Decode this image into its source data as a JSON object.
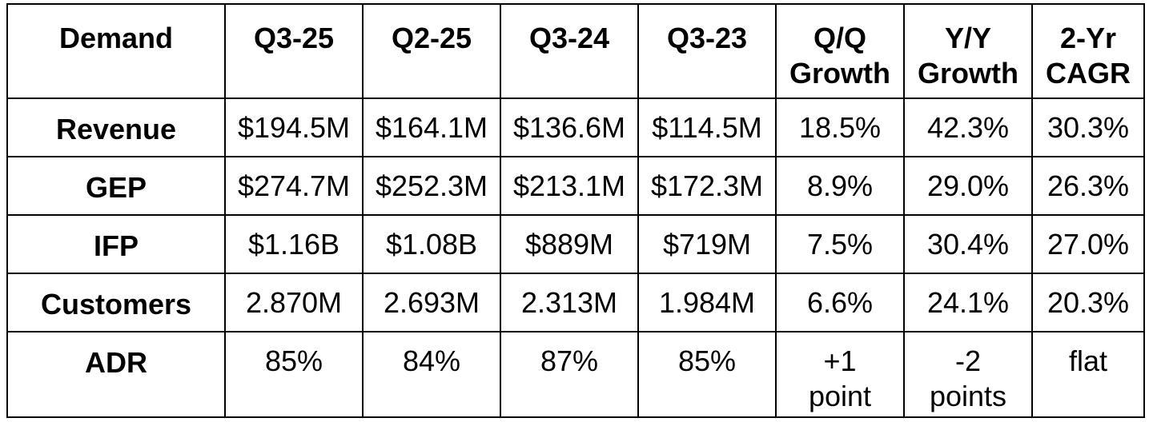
{
  "table": {
    "headers": [
      "Demand",
      "Q3-25",
      "Q2-25",
      "Q3-24",
      "Q3-23",
      "Q/Q Growth",
      "Y/Y Growth",
      "2-Yr CAGR"
    ],
    "header_lines": [
      [
        "Demand"
      ],
      [
        "Q3-25"
      ],
      [
        "Q2-25"
      ],
      [
        "Q3-24"
      ],
      [
        "Q3-23"
      ],
      [
        "Q/Q",
        "Growth"
      ],
      [
        "Y/Y",
        "Growth"
      ],
      [
        "2-Yr",
        "CAGR"
      ]
    ],
    "rows": [
      {
        "label": "Revenue",
        "cells": [
          "$194.5M",
          "$164.1M",
          "$136.6M",
          "$114.5M",
          "18.5%",
          "42.3%",
          "30.3%"
        ]
      },
      {
        "label": "GEP",
        "cells": [
          "$274.7M",
          "$252.3M",
          "$213.1M",
          "$172.3M",
          "8.9%",
          "29.0%",
          "26.3%"
        ]
      },
      {
        "label": "IFP",
        "cells": [
          "$1.16B",
          "$1.08B",
          "$889M",
          "$719M",
          "7.5%",
          "30.4%",
          "27.0%"
        ]
      },
      {
        "label": "Customers",
        "cells": [
          "2.870M",
          "2.693M",
          "2.313M",
          "1.984M",
          "6.6%",
          "24.1%",
          "20.3%"
        ]
      },
      {
        "label": "ADR",
        "cells": [
          "85%",
          "84%",
          "87%",
          "85%",
          "+1 point",
          "-2 points",
          "flat"
        ]
      }
    ],
    "adr_multiline": {
      "qq": [
        "+1",
        "point"
      ],
      "yy": [
        "-2",
        "points"
      ]
    }
  }
}
